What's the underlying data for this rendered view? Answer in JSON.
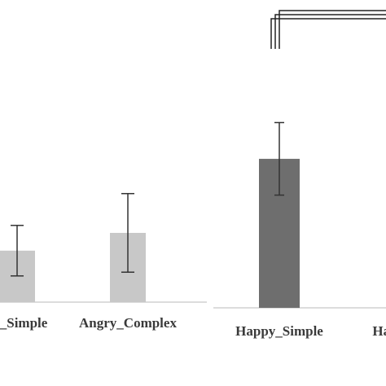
{
  "chart_data": [
    {
      "type": "bar",
      "categories": [
        "Angry_Simple",
        "Angry_Complex"
      ],
      "display_labels": [
        "ry_Simple",
        "Angry_Complex"
      ],
      "values": [
        0.55,
        0.74
      ],
      "error": [
        0.27,
        0.42
      ],
      "colors": [
        "#c8c8c8",
        "#c8c8c8"
      ],
      "ylim": [
        0,
        2.35
      ],
      "grid": false,
      "title": "",
      "xlabel": "",
      "ylabel": ""
    },
    {
      "type": "bar",
      "categories": [
        "Happy_Simple",
        "Happy_Complex"
      ],
      "display_labels": [
        "Happy_Simple",
        "Happy"
      ],
      "values": [
        1.15,
        0
      ],
      "error": [
        0.28,
        0
      ],
      "colors": [
        "#6e6e6e",
        "#6e6e6e"
      ],
      "ylim": [
        0,
        2.2
      ],
      "grid": false,
      "significance": {
        "between": [
          "Happy_Simple",
          "Happy_Complex"
        ],
        "lines": 3
      },
      "title": "",
      "xlabel": "",
      "ylabel": ""
    }
  ]
}
